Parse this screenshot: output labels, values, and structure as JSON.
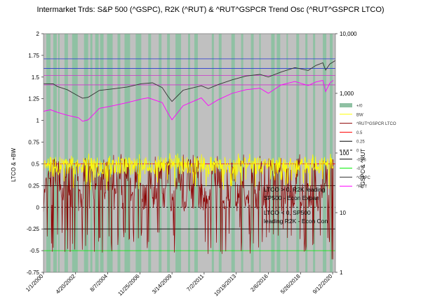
{
  "chart_data": {
    "type": "line",
    "title": "Intermarket Trds: S&P 500 (^GSPC), R2K (^RUT) & ^RUT^GSPCR Trend Osc (^RUT^GSPCR LTCO)",
    "ylabel_left": "LTCO & +BW",
    "ylabel_right": "^GSPC & ^RUT",
    "left_axis": {
      "range": [
        -0.75,
        2
      ],
      "ticks": [
        "2",
        "1.75",
        "1.5",
        "1.25",
        "1",
        "0.75",
        "0.5",
        "0.25",
        "0",
        "-0.25",
        "-0.5",
        "-0.75"
      ],
      "tick_values": [
        2,
        1.75,
        1.5,
        1.25,
        1,
        0.75,
        0.5,
        0.25,
        0,
        -0.25,
        -0.5,
        -0.75
      ]
    },
    "right_axis": {
      "scale": "log",
      "range": [
        1,
        10000
      ],
      "ticks": [
        "10,000",
        "1,000",
        "100",
        "10",
        "1"
      ],
      "tick_values": [
        10000,
        1000,
        100,
        10,
        1
      ]
    },
    "x_range": [
      2000.0,
      2020.9
    ],
    "data_end_year": 2020.75,
    "x_tick_labels": [
      "1/1/2000",
      "4/20/2002",
      "8/7/2004",
      "11/25/2006",
      "3/14/2009",
      "7/2/2011",
      "10/19/2013",
      "2/6/2016",
      "5/26/2018",
      "9/12/2020"
    ],
    "x_tick_years": [
      2000.0,
      2002.3,
      2004.6,
      2006.9,
      2009.2,
      2011.5,
      2013.8,
      2016.1,
      2018.4,
      2020.7
    ],
    "plot_background": "#c0c0c0",
    "band_color": "#8fc1a3",
    "positive_bands": [
      [
        2000.2,
        2000.5
      ],
      [
        2000.7,
        2000.95
      ],
      [
        2001.05,
        2001.15
      ],
      [
        2001.5,
        2001.75
      ],
      [
        2002.05,
        2002.45
      ],
      [
        2002.9,
        2003.2
      ],
      [
        2003.35,
        2003.5
      ],
      [
        2003.7,
        2003.95
      ],
      [
        2004.05,
        2004.3
      ],
      [
        2004.55,
        2004.95
      ],
      [
        2005.3,
        2005.5
      ],
      [
        2005.8,
        2006.2
      ],
      [
        2006.6,
        2007.0
      ],
      [
        2007.5,
        2007.7
      ],
      [
        2008.25,
        2008.45
      ],
      [
        2008.85,
        2009.05
      ],
      [
        2009.45,
        2009.85
      ],
      [
        2010.35,
        2010.5
      ],
      [
        2010.8,
        2011.05
      ],
      [
        2012.05,
        2012.2
      ],
      [
        2012.55,
        2012.75
      ],
      [
        2013.45,
        2013.7
      ],
      [
        2014.15,
        2014.3
      ],
      [
        2014.85,
        2015.05
      ],
      [
        2015.45,
        2015.55
      ],
      [
        2016.3,
        2016.55
      ],
      [
        2016.7,
        2016.95
      ],
      [
        2017.4,
        2017.5
      ],
      [
        2018.1,
        2018.3
      ],
      [
        2018.75,
        2018.9
      ],
      [
        2019.3,
        2019.45
      ],
      [
        2020.0,
        2020.25
      ],
      [
        2020.5,
        2020.7
      ]
    ],
    "reference_lines": [
      {
        "name": "0.5",
        "value": 0.5,
        "axis": "left",
        "color": "#ff0000"
      },
      {
        "name": "0.25",
        "value": 0.25,
        "axis": "left",
        "color": "#000000"
      },
      {
        "name": "0",
        "value": 0,
        "axis": "left",
        "color": "#000000",
        "style": "dashed"
      },
      {
        "name": "-0.25",
        "value": -0.25,
        "axis": "left",
        "color": "#000000"
      },
      {
        "name": "-0.5",
        "value": -0.5,
        "axis": "left",
        "color": "#00ee00"
      },
      {
        "name": "gspc-ref-1",
        "value": 1.71,
        "axis": "left",
        "color": "#2a3cd0"
      },
      {
        "name": "gspc-ref-2",
        "value": 1.6,
        "axis": "left",
        "color": "#2a3cd0"
      },
      {
        "name": "rut-ref-1",
        "value": 1.52,
        "axis": "left",
        "color": "#cc33cc"
      },
      {
        "name": "rut-ref-2",
        "value": 1.41,
        "axis": "left",
        "color": "#cc33cc"
      }
    ],
    "series": [
      {
        "name": "^GSPC",
        "axis": "right",
        "color": "#333333",
        "x": [
          2000.0,
          2000.7,
          2001.0,
          2001.7,
          2002.5,
          2002.8,
          2003.2,
          2004.0,
          2005.0,
          2006.0,
          2007.0,
          2007.8,
          2008.5,
          2008.9,
          2009.2,
          2010.0,
          2011.3,
          2011.8,
          2012.5,
          2013.5,
          2014.5,
          2015.5,
          2016.1,
          2017.0,
          2018.0,
          2018.95,
          2019.5,
          2020.0,
          2020.2,
          2020.5,
          2020.9
        ],
        "values": [
          1450,
          1440,
          1300,
          1150,
          900,
          830,
          860,
          1120,
          1190,
          1280,
          1450,
          1500,
          1250,
          900,
          730,
          1130,
          1340,
          1200,
          1400,
          1680,
          1950,
          2080,
          1880,
          2270,
          2700,
          2420,
          2930,
          3250,
          2450,
          3100,
          3550
        ]
      },
      {
        "name": "^RUT",
        "axis": "right",
        "color": "#ff00ff",
        "x": [
          2000.0,
          2000.5,
          2001.0,
          2001.7,
          2002.5,
          2002.8,
          2003.2,
          2004.0,
          2005.0,
          2006.0,
          2007.0,
          2007.5,
          2008.5,
          2008.9,
          2009.2,
          2010.0,
          2011.3,
          2011.8,
          2012.5,
          2013.5,
          2014.5,
          2015.5,
          2016.1,
          2017.0,
          2018.0,
          2018.95,
          2019.5,
          2020.0,
          2020.2,
          2020.5,
          2020.75
        ],
        "values": [
          500,
          530,
          480,
          430,
          390,
          340,
          360,
          560,
          620,
          700,
          800,
          840,
          700,
          470,
          360,
          620,
          840,
          620,
          780,
          1000,
          1150,
          1220,
          1000,
          1380,
          1580,
          1350,
          1550,
          1650,
          1070,
          1480,
          1650
        ]
      },
      {
        "name": "^RUT^GSPCR LTCO",
        "axis": "left",
        "color": "#8b0000",
        "generated": true
      },
      {
        "name": "BW",
        "axis": "left",
        "color": "#ffff00",
        "generated": true
      }
    ],
    "legend": {
      "position": "right",
      "entries": [
        {
          "label": "+/0",
          "color": "#8fc1a3",
          "kind": "swatch"
        },
        {
          "label": "BW",
          "color": "#ffff00",
          "kind": "line"
        },
        {
          "label": "^RUT^GSPCR LTCO",
          "color": "#8b0000",
          "kind": "line"
        },
        {
          "label": "0.5",
          "color": "#ff0000",
          "kind": "line"
        },
        {
          "label": "0.25",
          "color": "#000000",
          "kind": "line"
        },
        {
          "label": "0",
          "color": "#000000",
          "kind": "dash"
        },
        {
          "label": "-0.25",
          "color": "#000000",
          "kind": "line"
        },
        {
          "label": "-0.5",
          "color": "#00ee00",
          "kind": "line"
        },
        {
          "label": "^GSPC",
          "color": "#333333",
          "kind": "line"
        },
        {
          "label": "^RUT",
          "color": "#ff00ff",
          "kind": "line"
        }
      ]
    },
    "annotations": [
      {
        "name": "annotation-positive-line1",
        "text": "LTCO > 0, R2K leading"
      },
      {
        "name": "annotation-positive-line2",
        "text": "SP500 - Econ Expan"
      },
      {
        "name": "annotation-negative-line1",
        "text": "LTCO < 0, SP500"
      },
      {
        "name": "annotation-negative-line2",
        "text": "leading R2K - Econ Con"
      }
    ]
  }
}
